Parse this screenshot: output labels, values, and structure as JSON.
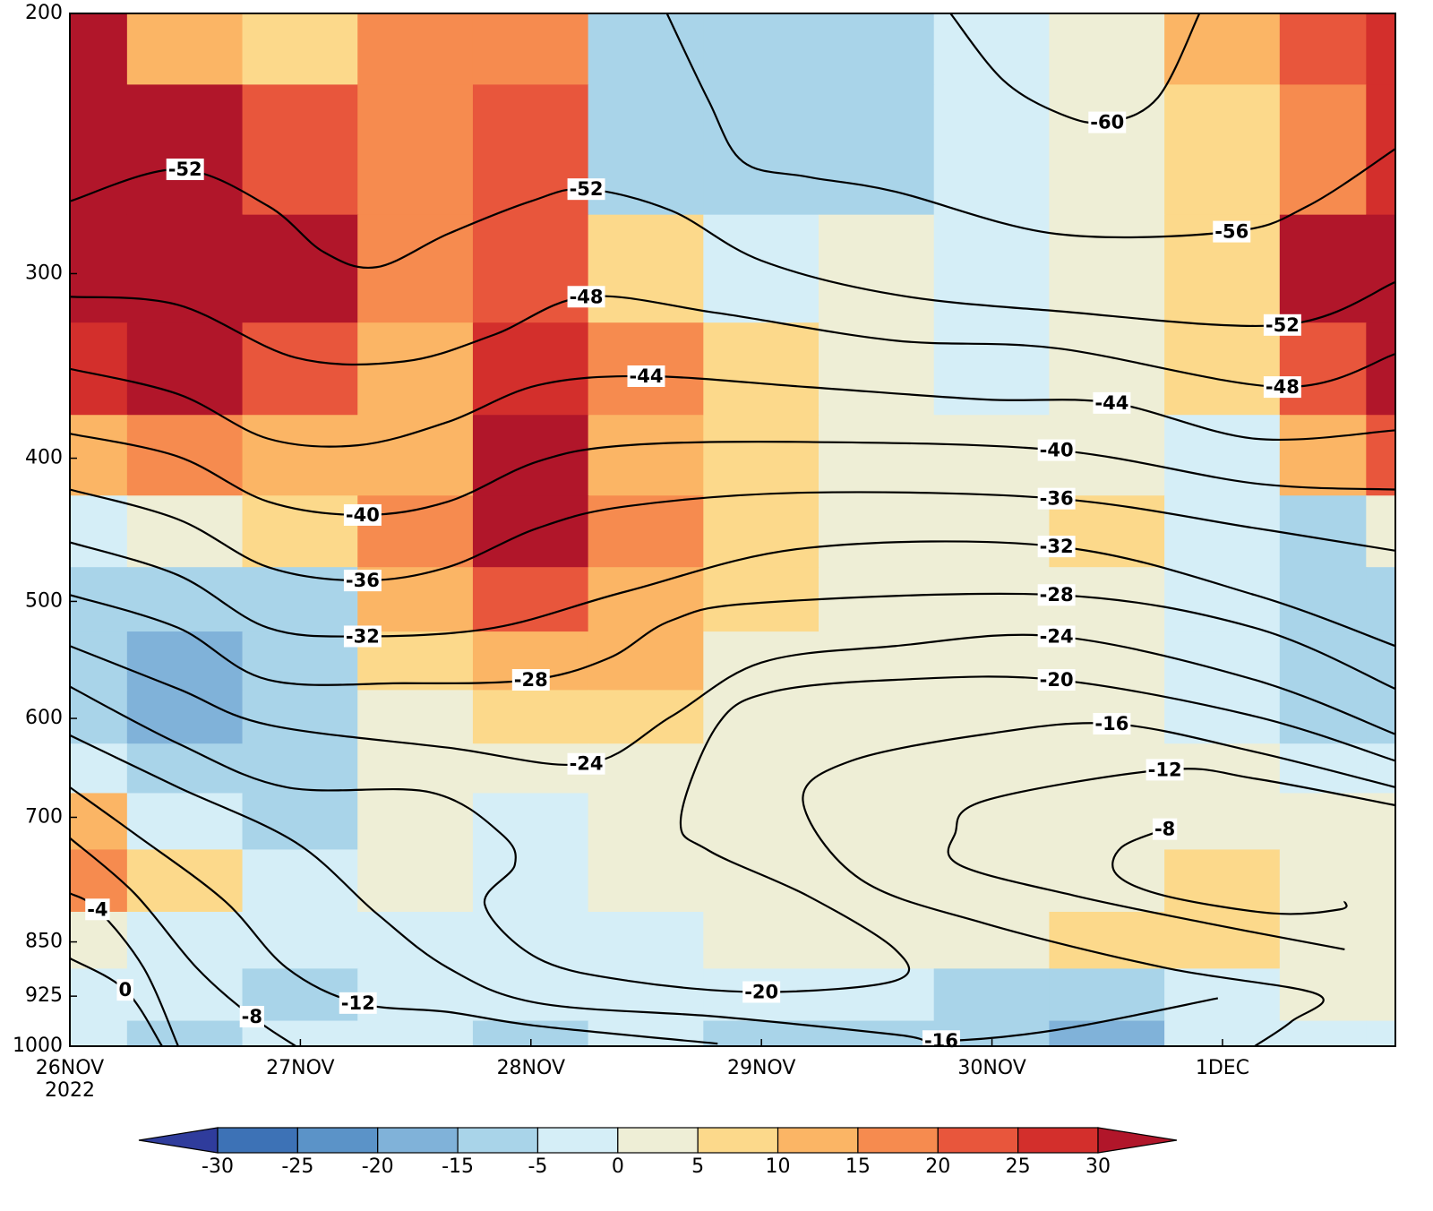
{
  "chart_data": {
    "type": "contour",
    "xlim": [
      0,
      5.75
    ],
    "xticks": [
      {
        "value": 0,
        "label": "26NOV"
      },
      {
        "value": 1,
        "label": "27NOV"
      },
      {
        "value": 2,
        "label": "28NOV"
      },
      {
        "value": 3,
        "label": "29NOV"
      },
      {
        "value": 4,
        "label": "30NOV"
      },
      {
        "value": 5,
        "label": "1DEC"
      }
    ],
    "x_year": "2022",
    "ylim": [
      1000,
      200
    ],
    "log_y": true,
    "yticks": [
      200,
      300,
      400,
      500,
      600,
      700,
      850,
      925,
      1000
    ],
    "colorbar": {
      "levels": [
        -30,
        -25,
        -20,
        -15,
        -5,
        0,
        5,
        10,
        15,
        20,
        25,
        30
      ],
      "colors": [
        "#2f3c9c",
        "#3d72b6",
        "#5b93c8",
        "#80b2d9",
        "#a9d4e9",
        "#d5eef7",
        "#eeeed6",
        "#fcd98b",
        "#fbb565",
        "#f68b4f",
        "#e8563c",
        "#d32f2c",
        "#b1162a"
      ]
    },
    "field": {
      "x": [
        0,
        0.5,
        1,
        1.5,
        2,
        2.5,
        3,
        3.5,
        4,
        4.5,
        5,
        5.5,
        5.75
      ],
      "y": [
        200,
        250,
        300,
        350,
        400,
        450,
        500,
        550,
        600,
        650,
        700,
        775,
        850,
        925,
        1000
      ],
      "values": [
        [
          32,
          12,
          7,
          17,
          17,
          -10,
          -10,
          -10,
          -2,
          2,
          12,
          22,
          27
        ],
        [
          32,
          32,
          22,
          17,
          22,
          -10,
          -10,
          -10,
          -2,
          2,
          7,
          17,
          27
        ],
        [
          32,
          32,
          32,
          17,
          22,
          7,
          -2,
          2,
          -2,
          2,
          7,
          32,
          32
        ],
        [
          27,
          32,
          22,
          12,
          27,
          17,
          7,
          2,
          -2,
          2,
          7,
          22,
          32
        ],
        [
          12,
          17,
          12,
          12,
          32,
          12,
          7,
          2,
          2,
          2,
          -2,
          12,
          22
        ],
        [
          -2,
          2,
          7,
          17,
          32,
          17,
          7,
          2,
          2,
          7,
          -2,
          -10,
          2
        ],
        [
          -10,
          -10,
          -10,
          12,
          22,
          12,
          7,
          2,
          2,
          2,
          -2,
          -10,
          -10
        ],
        [
          -10,
          -17,
          -10,
          7,
          12,
          12,
          2,
          2,
          2,
          2,
          -2,
          -10,
          -10
        ],
        [
          -10,
          -17,
          -10,
          2,
          7,
          7,
          2,
          2,
          2,
          2,
          -2,
          -10,
          -10
        ],
        [
          -2,
          -10,
          -10,
          2,
          2,
          2,
          2,
          2,
          2,
          2,
          2,
          -2,
          -2
        ],
        [
          12,
          -2,
          -10,
          2,
          -2,
          2,
          2,
          2,
          2,
          2,
          2,
          2,
          2
        ],
        [
          17,
          7,
          -2,
          2,
          -2,
          2,
          2,
          2,
          2,
          2,
          7,
          2,
          2
        ],
        [
          2,
          -2,
          -2,
          -2,
          -2,
          -2,
          2,
          2,
          2,
          7,
          7,
          2,
          2
        ],
        [
          -2,
          -2,
          -10,
          -2,
          -2,
          -2,
          -2,
          -2,
          -10,
          -10,
          -2,
          2,
          2
        ],
        [
          -2,
          -10,
          -2,
          -2,
          -10,
          -2,
          -10,
          -10,
          -10,
          -17,
          -2,
          -2,
          -2
        ]
      ]
    },
    "contours": [
      {
        "level": -60,
        "x": [
          3.82,
          4.05,
          4.3,
          4.5,
          4.72,
          4.9
        ],
        "y": [
          200,
          222,
          234,
          237,
          228,
          200
        ],
        "label_x": [
          4.5
        ],
        "label_y": [
          237
        ]
      },
      {
        "level": -56,
        "x": [
          2.59,
          2.77,
          2.92,
          3.2,
          3.58,
          4.28,
          5.04,
          5.37,
          5.75
        ],
        "y": [
          200,
          229,
          252,
          258,
          264,
          282,
          281,
          270,
          247
        ],
        "label_x": [
          5.04
        ],
        "label_y": [
          281
        ]
      },
      {
        "level": -52,
        "x": [
          0,
          0.47,
          0.86,
          1.1,
          1.33,
          1.64,
          2.0,
          2.24,
          2.61,
          3.0,
          3.58,
          4.28,
          5.26,
          5.75
        ],
        "y": [
          268,
          255,
          270,
          290,
          297,
          282,
          268,
          263,
          272,
          294,
          310,
          318,
          325,
          304
        ],
        "label_x": [
          0.5,
          2.24,
          5.26
        ],
        "label_y": [
          255,
          263,
          325
        ]
      },
      {
        "level": -48,
        "x": [
          0,
          0.47,
          0.98,
          1.45,
          1.84,
          2.24,
          2.81,
          3.58,
          4.28,
          5.26,
          5.75
        ],
        "y": [
          311,
          315,
          342,
          344,
          330,
          311,
          319,
          333,
          337,
          358,
          340
        ],
        "label_x": [
          2.24,
          5.26
        ],
        "label_y": [
          311,
          358
        ]
      },
      {
        "level": -44,
        "x": [
          0,
          0.47,
          0.86,
          1.25,
          1.64,
          2.03,
          2.5,
          3.2,
          3.97,
          4.52,
          5.14,
          5.75
        ],
        "y": [
          348,
          362,
          388,
          392,
          378,
          357,
          352,
          358,
          365,
          367,
          388,
          383
        ],
        "label_x": [
          2.5,
          4.52
        ],
        "label_y": [
          352,
          367
        ]
      },
      {
        "level": -40,
        "x": [
          0,
          0.47,
          0.86,
          1.27,
          1.64,
          2.03,
          2.42,
          3.2,
          4.28,
          5.14,
          5.75
        ],
        "y": [
          385,
          399,
          428,
          437,
          428,
          402,
          392,
          390,
          395,
          416,
          420
        ],
        "label_x": [
          1.27,
          4.28
        ],
        "label_y": [
          437,
          395
        ]
      },
      {
        "level": -36,
        "x": [
          0,
          0.47,
          0.86,
          1.27,
          1.64,
          2.03,
          2.42,
          3.2,
          4.28,
          5.14,
          5.75
        ],
        "y": [
          420,
          440,
          474,
          484,
          474,
          446,
          431,
          422,
          426,
          446,
          462
        ],
        "label_x": [
          1.27,
          4.28
        ],
        "label_y": [
          484,
          426
        ]
      },
      {
        "level": -32,
        "x": [
          0,
          0.47,
          0.86,
          1.27,
          1.84,
          2.42,
          3.2,
          4.28,
          5.14,
          5.75
        ],
        "y": [
          456,
          480,
          521,
          528,
          521,
          492,
          460,
          459,
          495,
          536
        ],
        "label_x": [
          1.27,
          4.28
        ],
        "label_y": [
          528,
          459
        ]
      },
      {
        "level": -28,
        "x": [
          0,
          0.47,
          0.86,
          1.45,
          2.0,
          2.34,
          2.61,
          3.0,
          4.28,
          5.14,
          5.75
        ],
        "y": [
          495,
          521,
          565,
          568,
          565,
          546,
          515,
          501,
          495,
          521,
          573
        ],
        "label_x": [
          2.0,
          4.28
        ],
        "label_y": [
          565,
          495
        ]
      },
      {
        "level": -24,
        "x": [
          0,
          0.47,
          0.86,
          1.64,
          2.24,
          2.61,
          3.0,
          3.58,
          4.28,
          5.14,
          5.75
        ],
        "y": [
          536,
          573,
          606,
          628,
          644,
          598,
          550,
          536,
          528,
          565,
          615
        ],
        "label_x": [
          2.24,
          4.28
        ],
        "label_y": [
          644,
          528
        ]
      },
      {
        "level": -20,
        "x": [
          0,
          0.47,
          0.94,
          1.56,
          1.87,
          1.93,
          1.8,
          2.03,
          2.42,
          3.0,
          3.58,
          3.58,
          3.2,
          2.77,
          2.65,
          2.81,
          3.04,
          3.58,
          4.28,
          5.14,
          5.75
        ],
        "y": [
          571,
          624,
          668,
          673,
          718,
          754,
          802,
          872,
          903,
          919,
          903,
          860,
          791,
          737,
          702,
          606,
          576,
          565,
          565,
          598,
          641
        ],
        "label_x": [
          3.0,
          4.28
        ],
        "label_y": [
          919,
          565
        ]
      },
      {
        "level": -16,
        "x": [
          5.75,
          5.14,
          4.52,
          3.97,
          3.39,
          3.18,
          3.43,
          3.97,
          4.75,
          5.41,
          5.3,
          5.14
        ],
        "y": [
          668,
          632,
          605,
          615,
          641,
          682,
          771,
          826,
          885,
          922,
          962,
          1000
        ],
        "label_x": [
          4.52
        ],
        "label_y": [
          605
        ]
      },
      {
        "level": -16,
        "x": [
          0,
          0.47,
          0.98,
          1.33,
          1.64,
          2.03,
          2.81,
          3.58,
          3.78,
          4.28,
          4.98
        ],
        "y": [
          616,
          668,
          728,
          813,
          885,
          935,
          955,
          982,
          992,
          975,
          928
        ],
        "label_x": [
          3.78
        ],
        "label_y": [
          992
        ]
      },
      {
        "level": -12,
        "x": [
          5.75,
          5.14,
          4.75,
          3.97,
          3.84,
          3.86,
          4.36,
          4.94,
          5.53
        ],
        "y": [
          687,
          659,
          650,
          682,
          718,
          754,
          791,
          826,
          860
        ],
        "label_x": [
          4.75
        ],
        "label_y": [
          650
        ]
      },
      {
        "level": -12,
        "x": [
          0,
          0.28,
          0.67,
          0.94,
          1.25,
          1.64,
          2.03,
          2.81
        ],
        "y": [
          668,
          718,
          797,
          885,
          935,
          948,
          969,
          996
        ],
        "label_x": [
          1.25
        ],
        "label_y": [
          935
        ]
      },
      {
        "level": -8,
        "x": [
          4.75,
          4.56,
          4.54,
          4.75,
          5.22,
          5.51,
          5.53
        ],
        "y": [
          713,
          734,
          765,
          791,
          813,
          808,
          798
        ],
        "label_x": [
          4.75
        ],
        "label_y": [
          713
        ]
      },
      {
        "level": -8,
        "x": [
          0,
          0.28,
          0.55,
          0.79,
          0.98
        ],
        "y": [
          723,
          788,
          885,
          955,
          1000
        ],
        "label_x": [
          0.79
        ],
        "label_y": [
          955
        ]
      },
      {
        "level": -4,
        "x": [
          0,
          0.12,
          0.32,
          0.47
        ],
        "y": [
          788,
          808,
          885,
          1000
        ],
        "label_x": [
          0.12
        ],
        "label_y": [
          808
        ]
      },
      {
        "level": 0,
        "x": [
          0,
          0.24,
          0.4
        ],
        "y": [
          872,
          916,
          1000
        ],
        "label_x": [
          0.24
        ],
        "label_y": [
          916
        ]
      }
    ]
  }
}
